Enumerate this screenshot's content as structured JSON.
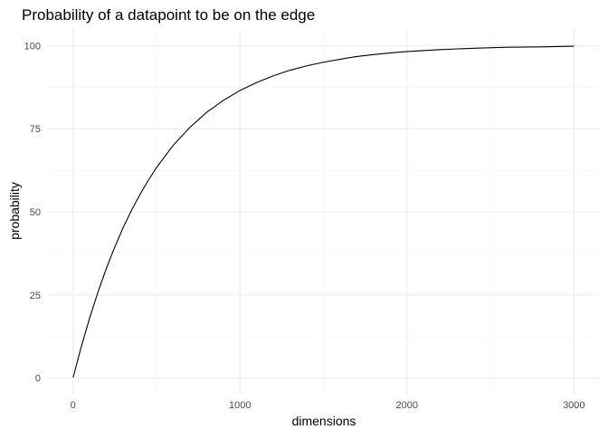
{
  "chart_data": {
    "type": "line",
    "title": "Probability of a datapoint to be on the edge",
    "xlabel": "dimensions",
    "ylabel": "probability",
    "xlim": [
      -150,
      3150
    ],
    "ylim": [
      -5,
      105
    ],
    "xticks": [
      0,
      1000,
      2000,
      3000
    ],
    "xtick_labels": [
      "0",
      "1000",
      "2000",
      "3000"
    ],
    "yticks": [
      0,
      25,
      50,
      75,
      100
    ],
    "ytick_labels": [
      "0",
      "25",
      "50",
      "75",
      "100"
    ],
    "grid": true,
    "legend": "none",
    "series": [
      {
        "x": [
          1,
          50,
          100,
          150,
          200,
          250,
          300,
          350,
          400,
          450,
          500,
          600,
          700,
          800,
          900,
          1000,
          1100,
          1200,
          1300,
          1400,
          1500,
          1600,
          1700,
          1800,
          1900,
          2000,
          2200,
          2400,
          2600,
          2800,
          3000
        ],
        "y": [
          0.2,
          9.5,
          18.1,
          25.9,
          33.0,
          39.4,
          45.2,
          50.4,
          55.1,
          59.4,
          63.3,
          70.0,
          75.4,
          79.9,
          83.5,
          86.5,
          88.9,
          90.9,
          92.6,
          93.9,
          95.0,
          95.9,
          96.7,
          97.3,
          97.8,
          98.2,
          98.8,
          99.2,
          99.5,
          99.6,
          99.8
        ]
      }
    ]
  }
}
